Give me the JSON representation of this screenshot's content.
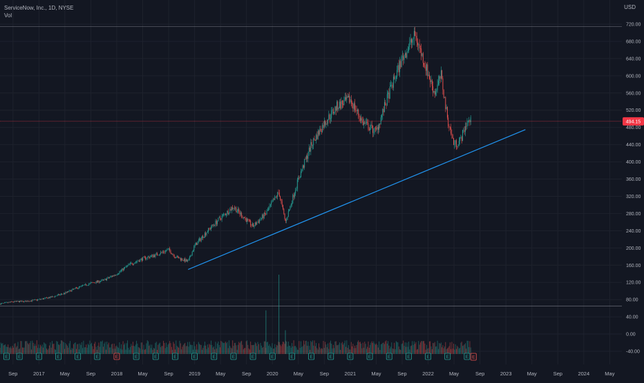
{
  "legend": {
    "symbol_line": "ServiceNow, Inc., 1D, NYSE",
    "volume_label": "Vol"
  },
  "currency": "USD",
  "last_price_label": "494.15",
  "colors": {
    "background": "#131722",
    "up": "#26a69a",
    "down": "#ef5350",
    "trendline": "#2196f3",
    "grid": "#1e222d",
    "axis_text": "#b2b5be",
    "last_price": "#f23645"
  },
  "chart_data": {
    "type": "candlestick",
    "title": "ServiceNow, Inc., 1D, NYSE",
    "ylim": [
      -60,
      740
    ],
    "y_ticks": [
      "720.00",
      "680.00",
      "640.00",
      "600.00",
      "560.00",
      "520.00",
      "480.00",
      "440.00",
      "400.00",
      "360.00",
      "320.00",
      "280.00",
      "240.00",
      "200.00",
      "160.00",
      "120.00",
      "80.00",
      "40.00",
      "0.00",
      "-40.00"
    ],
    "x_ticks": [
      "Sep",
      "2017",
      "May",
      "Sep",
      "2018",
      "May",
      "Sep",
      "2019",
      "May",
      "Sep",
      "2020",
      "May",
      "Sep",
      "2021",
      "May",
      "Sep",
      "2022",
      "May",
      "Sep",
      "2023",
      "May",
      "Sep",
      "2024",
      "May"
    ],
    "price_path": [
      [
        "2016-07",
        70
      ],
      [
        "2016-09",
        75
      ],
      [
        "2016-11",
        76
      ],
      [
        "2017-01",
        80
      ],
      [
        "2017-03",
        86
      ],
      [
        "2017-05",
        95
      ],
      [
        "2017-07",
        108
      ],
      [
        "2017-09",
        118
      ],
      [
        "2017-11",
        125
      ],
      [
        "2018-01",
        140
      ],
      [
        "2018-03",
        162
      ],
      [
        "2018-05",
        175
      ],
      [
        "2018-07",
        184
      ],
      [
        "2018-09",
        196
      ],
      [
        "2018-10",
        180
      ],
      [
        "2018-12",
        168
      ],
      [
        "2019-01",
        205
      ],
      [
        "2019-03",
        240
      ],
      [
        "2019-05",
        270
      ],
      [
        "2019-07",
        296
      ],
      [
        "2019-08",
        280
      ],
      [
        "2019-10",
        250
      ],
      [
        "2019-12",
        280
      ],
      [
        "2020-02",
        330
      ],
      [
        "2020-03",
        260
      ],
      [
        "2020-05",
        360
      ],
      [
        "2020-07",
        440
      ],
      [
        "2020-09",
        490
      ],
      [
        "2020-11",
        530
      ],
      [
        "2021-01",
        545
      ],
      [
        "2021-03",
        490
      ],
      [
        "2021-05",
        470
      ],
      [
        "2021-07",
        560
      ],
      [
        "2021-09",
        640
      ],
      [
        "2021-11",
        695
      ],
      [
        "2021-12",
        650
      ],
      [
        "2022-02",
        560
      ],
      [
        "2022-03",
        600
      ],
      [
        "2022-04",
        500
      ],
      [
        "2022-05",
        440
      ],
      [
        "2022-06",
        450
      ],
      [
        "2022-07",
        494
      ]
    ],
    "volume_peaks": [
      [
        "2019-12",
        0.55
      ],
      [
        "2020-02",
        1.0
      ],
      [
        "2020-03",
        0.3
      ]
    ],
    "horizontal_lines": [
      714,
      65
    ],
    "last_price": 494.15,
    "trendline": {
      "start": [
        "2018-12",
        150
      ],
      "end": [
        "2023-04",
        475
      ]
    },
    "earnings_markers": [
      "2016-08",
      "2016-10",
      "2017-01",
      "2017-04",
      "2017-07",
      "2017-10",
      "2018-01",
      "2018-04",
      "2018-07",
      "2018-10",
      "2019-01",
      "2019-04",
      "2019-07",
      "2019-10",
      "2020-01",
      "2020-04",
      "2020-07",
      "2020-10",
      "2021-01",
      "2021-04",
      "2021-07",
      "2021-10",
      "2022-01",
      "2022-04",
      "2022-07"
    ],
    "earnings_red": [
      "2018-01"
    ],
    "upcoming_earnings": "E"
  }
}
